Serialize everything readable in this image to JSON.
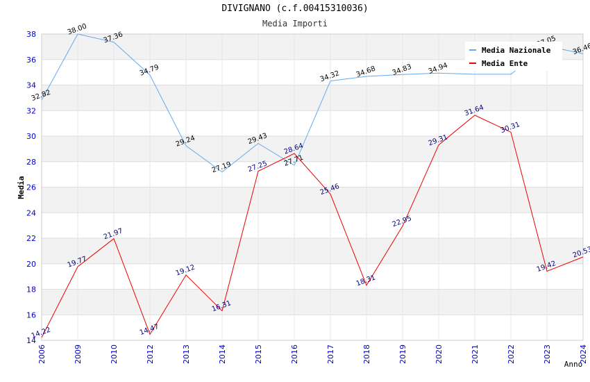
{
  "chart_data": {
    "type": "line",
    "title": "DIVIGNANO (c.f.00415310036)",
    "subtitle": "Media Importi",
    "xlabel": "Anno",
    "ylabel": "Media",
    "categories": [
      "2006",
      "2009",
      "2010",
      "2012",
      "2013",
      "2014",
      "2015",
      "2016",
      "2017",
      "2018",
      "2019",
      "2020",
      "2021",
      "2022",
      "2023",
      "2024"
    ],
    "ylim": [
      14,
      38
    ],
    "yticks": [
      14,
      16,
      18,
      20,
      22,
      24,
      26,
      28,
      30,
      32,
      34,
      36,
      38
    ],
    "grid": true,
    "legend_position": "top-right",
    "series": [
      {
        "name": "Media Nazionale",
        "color": "#66aaee",
        "label_color": "#000000",
        "values": [
          32.82,
          38.0,
          37.36,
          34.79,
          29.24,
          27.19,
          29.43,
          27.71,
          34.32,
          34.68,
          34.83,
          34.94,
          null,
          null,
          37.05,
          36.46
        ],
        "path_values": [
          32.82,
          38.0,
          37.36,
          34.79,
          29.24,
          27.19,
          29.43,
          27.71,
          34.32,
          34.68,
          34.83,
          34.94,
          34.85,
          34.85,
          37.05,
          36.46
        ]
      },
      {
        "name": "Media Ente",
        "color": "#ee0000",
        "label_color": "#000080",
        "values": [
          14.22,
          19.77,
          21.97,
          14.47,
          19.12,
          16.31,
          27.25,
          28.64,
          25.46,
          18.31,
          22.95,
          29.31,
          31.64,
          30.31,
          19.42,
          20.53
        ]
      }
    ]
  }
}
